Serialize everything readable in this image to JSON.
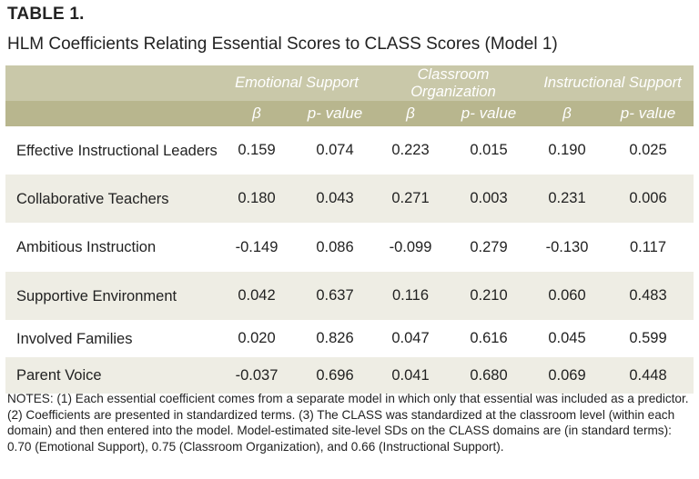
{
  "label": "TABLE 1.",
  "title": "HLM Coefficients Relating Essential Scores to CLASS Scores (Model 1)",
  "groups": [
    "Emotional Support",
    "Classroom Organization",
    "Instructional Support"
  ],
  "subheaders": [
    "β",
    "p- value",
    "β",
    "p- value",
    "β",
    "p- value"
  ],
  "rows": [
    {
      "label": "Effective Instructional Leaders",
      "values": [
        "0.159",
        "0.074",
        "0.223",
        "0.015",
        "0.190",
        "0.025"
      ]
    },
    {
      "label": "Collaborative Teachers",
      "values": [
        "0.180",
        "0.043",
        "0.271",
        "0.003",
        "0.231",
        "0.006"
      ]
    },
    {
      "label": "Ambitious Instruction",
      "values": [
        "-0.149",
        "0.086",
        "-0.099",
        "0.279",
        "-0.130",
        "0.117"
      ]
    },
    {
      "label": "Supportive Environment",
      "values": [
        "0.042",
        "0.637",
        "0.116",
        "0.210",
        "0.060",
        "0.483"
      ]
    },
    {
      "label": "Involved Families",
      "values": [
        "0.020",
        "0.826",
        "0.047",
        "0.616",
        "0.045",
        "0.599"
      ]
    },
    {
      "label": "Parent Voice",
      "values": [
        "-0.037",
        "0.696",
        "0.041",
        "0.680",
        "0.069",
        "0.448"
      ]
    }
  ],
  "notes": "NOTES: (1) Each essential coefficient comes from a separate model in which only that essential was included as a predictor. (2) Coefficients are presented in standardized terms. (3) The CLASS was standardized at the classroom level (within each domain) and then entered into the model. Model-estimated site-level SDs on the CLASS domains are (in standard terms): 0.70 (Emotional Support), 0.75 (Classroom Organization), and 0.66 (Instructional Support).",
  "colors": {
    "header_light": "#c9c8a9",
    "header_dark": "#b8b68e",
    "row_stripe": "#eeede4"
  }
}
